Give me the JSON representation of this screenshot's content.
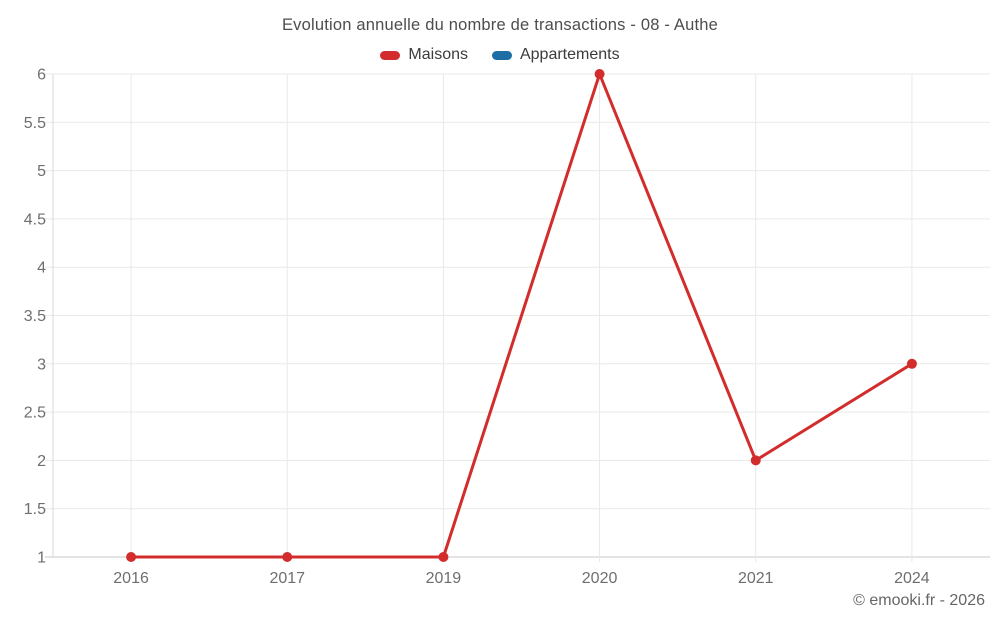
{
  "chart_data": {
    "type": "line",
    "title": "Evolution annuelle du nombre de transactions - 08 - Authe",
    "categories": [
      "2016",
      "2017",
      "2019",
      "2020",
      "2021",
      "2024"
    ],
    "series": [
      {
        "name": "Maisons",
        "color": "#d32c2c",
        "values": [
          1,
          1,
          1,
          6,
          2,
          3
        ]
      },
      {
        "name": "Appartements",
        "color": "#1c6ea4",
        "values": []
      }
    ],
    "xlabel": "",
    "ylabel": "",
    "ylim": [
      1,
      6
    ],
    "y_ticks": [
      "1",
      "1.5",
      "2",
      "2.5",
      "3",
      "3.5",
      "4",
      "4.5",
      "5",
      "5.5",
      "6"
    ],
    "grid": true,
    "legend_position": "top",
    "marker": "circle",
    "colors": {
      "grid": "#e9e9e9",
      "axis_bottom": "#c9c9c9",
      "axis_left": "#d9d9d9",
      "tick_label": "#6e6e6e",
      "title": "#4d4d4d",
      "legend_text": "#3c3c3c",
      "copyright_text": "#666666"
    }
  },
  "footer": {
    "copyright": "© emooki.fr - 2026"
  }
}
